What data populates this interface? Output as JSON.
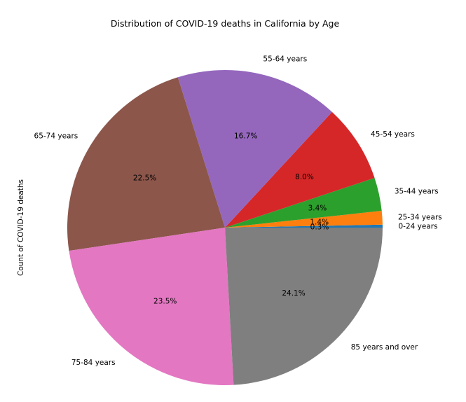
{
  "chart_data": {
    "type": "pie",
    "title": "Distribution of COVID-19 deaths in California by Age",
    "ylabel": "Count of COVID-19 deaths",
    "start_angle_deg": 0,
    "direction": "counterclockwise",
    "slices": [
      {
        "label": "0-24 years",
        "value": 0.3,
        "pct_label": "0.3%",
        "color": "#1f77b4"
      },
      {
        "label": "25-34 years",
        "value": 1.4,
        "pct_label": "1.4%",
        "color": "#ff7f0e"
      },
      {
        "label": "35-44 years",
        "value": 3.4,
        "pct_label": "3.4%",
        "color": "#2ca02c"
      },
      {
        "label": "45-54 years",
        "value": 8.0,
        "pct_label": "8.0%",
        "color": "#d62728"
      },
      {
        "label": "55-64 years",
        "value": 16.7,
        "pct_label": "16.7%",
        "color": "#9467bd"
      },
      {
        "label": "65-74 years",
        "value": 22.5,
        "pct_label": "22.5%",
        "color": "#8c564b"
      },
      {
        "label": "75-84 years",
        "value": 23.5,
        "pct_label": "23.5%",
        "color": "#e377c2"
      },
      {
        "label": "85 years and over",
        "value": 24.1,
        "pct_label": "24.1%",
        "color": "#7f7f7f"
      }
    ]
  }
}
